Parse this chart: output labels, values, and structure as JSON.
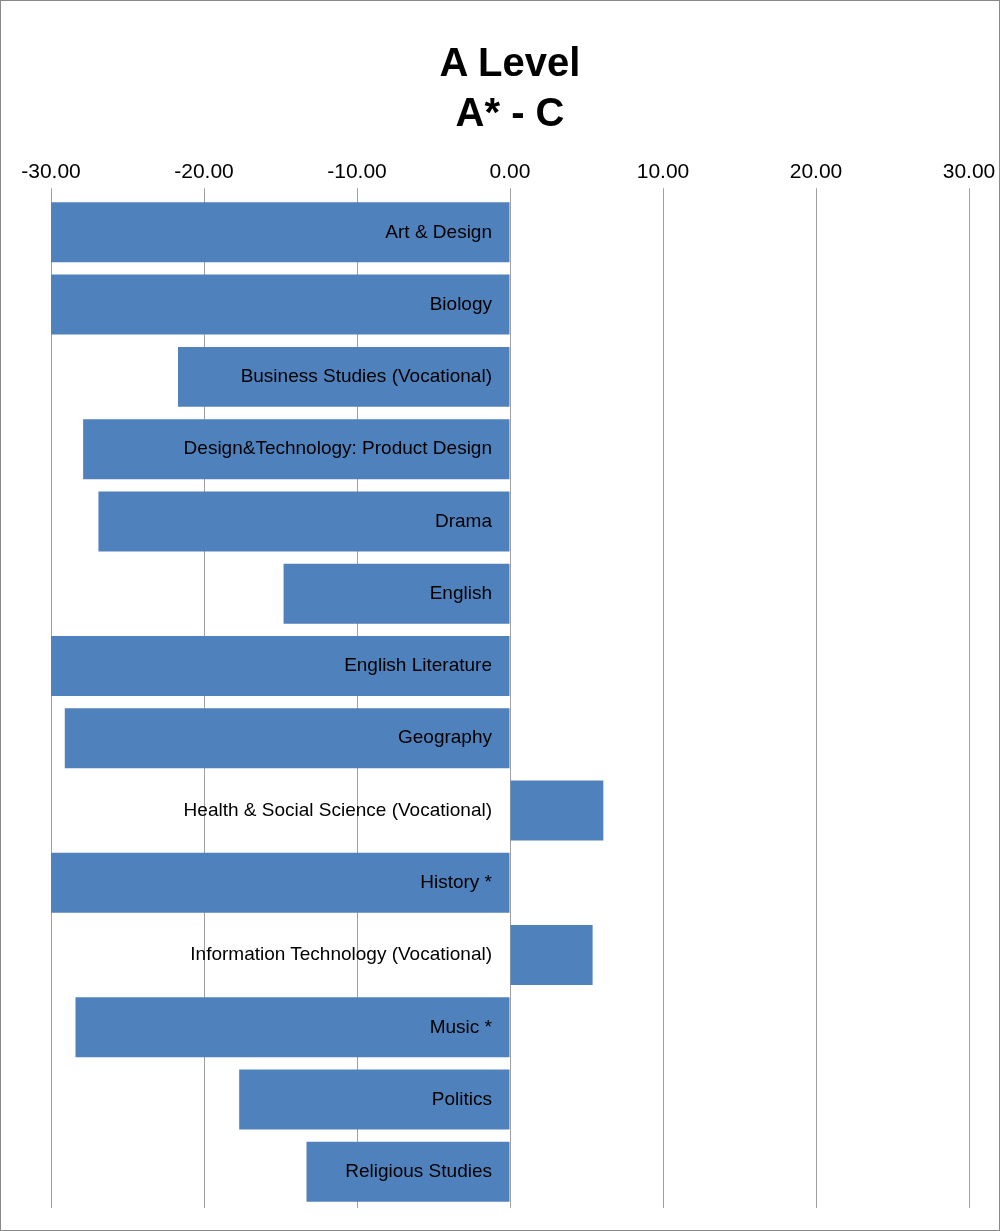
{
  "chart_data": {
    "type": "bar",
    "orientation": "horizontal",
    "title": "A Level",
    "subtitle": "A* - C",
    "categories": [
      "Art & Design",
      "Biology",
      "Business Studies (Vocational)",
      "Design&Technology: Product Design",
      "Drama",
      "English",
      "English Literature",
      "Geography",
      "Health & Social Science (Vocational)",
      "History *",
      "Information Technology (Vocational)",
      "Music *",
      "Politics",
      "Religious Studies"
    ],
    "values": [
      -30,
      -30,
      -21.7,
      -27.9,
      -26.9,
      -14.8,
      -30,
      -29.1,
      6.1,
      -30,
      5.4,
      -28.4,
      -17.7,
      -13.3
    ],
    "color": "#4f81bd",
    "xlim": [
      -30,
      30
    ],
    "xticks": [
      {
        "value": -30,
        "label": "-30.00"
      },
      {
        "value": -20,
        "label": "-20.00"
      },
      {
        "value": -10,
        "label": "-10.00"
      },
      {
        "value": 0,
        "label": "0.00"
      },
      {
        "value": 10,
        "label": "10.00"
      },
      {
        "value": 20,
        "label": "20.00"
      },
      {
        "value": 30,
        "label": "30.00"
      }
    ],
    "grid": "x",
    "legend": false
  }
}
